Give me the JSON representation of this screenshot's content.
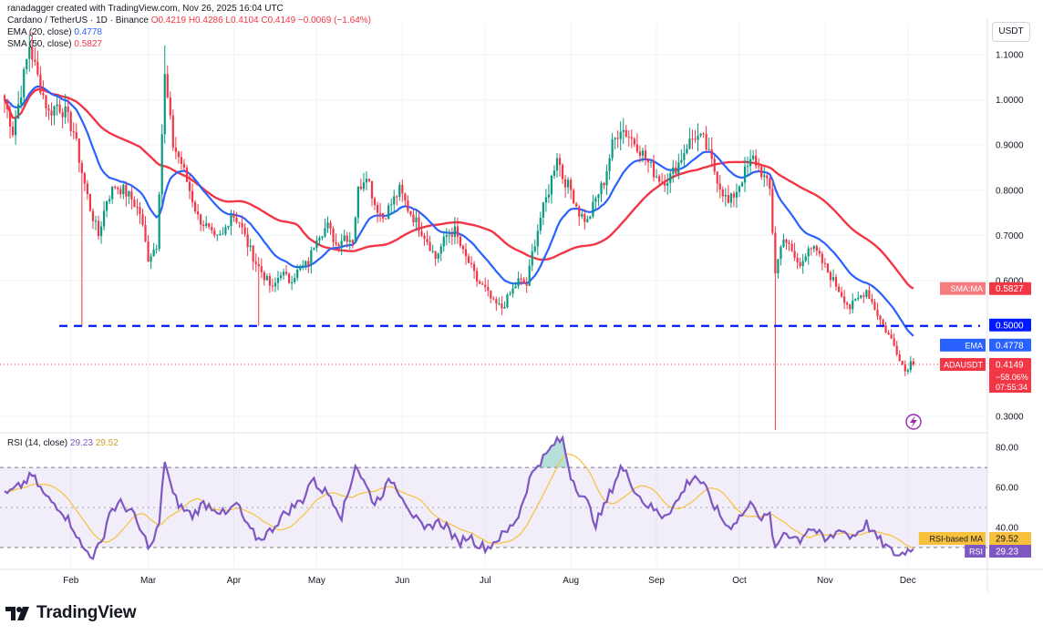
{
  "header": {
    "author_line": "ranadagger created with TradingView.com, Nov 26, 2025 16:04 UTC",
    "symbol": "Cardano / TetherUS · 1D · Binance",
    "ohlc": "O0.4219 H0.4286 L0.4104 C0.4149 −0.0069 (−1.64%)",
    "ema_label": "EMA (20, close)",
    "ema_value": "0.4778",
    "sma_label": "SMA (50, close)",
    "sma_value": "0.5827"
  },
  "currency_badge": "USDT",
  "brand": {
    "name": "TradingView"
  },
  "colors": {
    "up": "#089981",
    "down": "#f23645",
    "ema": "#2962ff",
    "sma": "#f23645",
    "support": "#0019ff",
    "rsi": "#7e57c2",
    "rsi_ma": "#f7c13b",
    "grid": "#f0f3fa"
  },
  "chart_data": [
    {
      "type": "candlestick",
      "ylim": [
        0.27,
        1.17
      ],
      "y_ticks": [
        "1.1000",
        "1.0000",
        "0.9000",
        "0.8000",
        "0.7000",
        "0.6000",
        "0.3000"
      ],
      "x_ticks": [
        "Feb",
        "Mar",
        "Apr",
        "May",
        "Jun",
        "Jul",
        "Aug",
        "Sep",
        "Oct",
        "Nov",
        "Dec"
      ],
      "support_level": {
        "value": 0.5,
        "label": "0.5000"
      },
      "price_tag": {
        "label": "ADAUSDT",
        "value": "0.4149",
        "change": "−58.06%",
        "countdown": "07:55:34"
      },
      "ema_tag": {
        "label": "EMA",
        "value": "0.4778"
      },
      "sma_tag": {
        "label": "SMA:MA",
        "value": "0.5827"
      },
      "close_anchors": [
        [
          0,
          1.0
        ],
        [
          3,
          0.93
        ],
        [
          6,
          1.02
        ],
        [
          9,
          1.12
        ],
        [
          12,
          1.05
        ],
        [
          16,
          0.97
        ],
        [
          19,
          0.99
        ],
        [
          22,
          0.97
        ],
        [
          25,
          0.93
        ],
        [
          28,
          0.84
        ],
        [
          31,
          0.76
        ],
        [
          34,
          0.7
        ],
        [
          37,
          0.78
        ],
        [
          40,
          0.81
        ],
        [
          43,
          0.8
        ],
        [
          46,
          0.78
        ],
        [
          49,
          0.75
        ],
        [
          52,
          0.65
        ],
        [
          55,
          0.68
        ],
        [
          58,
          1.05
        ],
        [
          61,
          0.9
        ],
        [
          64,
          0.86
        ],
        [
          67,
          0.8
        ],
        [
          70,
          0.74
        ],
        [
          73,
          0.72
        ],
        [
          76,
          0.69
        ],
        [
          79,
          0.7
        ],
        [
          82,
          0.75
        ],
        [
          85,
          0.73
        ],
        [
          88,
          0.68
        ],
        [
          91,
          0.64
        ],
        [
          94,
          0.61
        ],
        [
          97,
          0.58
        ],
        [
          100,
          0.62
        ],
        [
          103,
          0.6
        ],
        [
          106,
          0.62
        ],
        [
          110,
          0.64
        ],
        [
          113,
          0.7
        ],
        [
          117,
          0.72
        ],
        [
          120,
          0.68
        ],
        [
          123,
          0.7
        ],
        [
          126,
          0.69
        ],
        [
          128,
          0.8
        ],
        [
          131,
          0.84
        ],
        [
          134,
          0.77
        ],
        [
          137,
          0.74
        ],
        [
          140,
          0.77
        ],
        [
          143,
          0.8
        ],
        [
          146,
          0.76
        ],
        [
          149,
          0.73
        ],
        [
          153,
          0.69
        ],
        [
          156,
          0.65
        ],
        [
          160,
          0.7
        ],
        [
          163,
          0.71
        ],
        [
          166,
          0.66
        ],
        [
          168,
          0.64
        ],
        [
          171,
          0.6
        ],
        [
          174,
          0.58
        ],
        [
          177,
          0.55
        ],
        [
          180,
          0.54
        ],
        [
          183,
          0.57
        ],
        [
          186,
          0.6
        ],
        [
          189,
          0.59
        ],
        [
          191,
          0.66
        ],
        [
          194,
          0.74
        ],
        [
          197,
          0.8
        ],
        [
          200,
          0.88
        ],
        [
          202,
          0.83
        ],
        [
          205,
          0.8
        ],
        [
          208,
          0.75
        ],
        [
          211,
          0.73
        ],
        [
          214,
          0.78
        ],
        [
          217,
          0.82
        ],
        [
          220,
          0.9
        ],
        [
          223,
          0.94
        ],
        [
          226,
          0.92
        ],
        [
          229,
          0.9
        ],
        [
          232,
          0.87
        ],
        [
          235,
          0.84
        ],
        [
          238,
          0.82
        ],
        [
          241,
          0.83
        ],
        [
          244,
          0.86
        ],
        [
          247,
          0.9
        ],
        [
          250,
          0.92
        ],
        [
          253,
          0.91
        ],
        [
          256,
          0.86
        ],
        [
          259,
          0.81
        ],
        [
          262,
          0.77
        ],
        [
          265,
          0.8
        ],
        [
          268,
          0.84
        ],
        [
          271,
          0.87
        ],
        [
          274,
          0.84
        ],
        [
          277,
          0.8
        ],
        [
          279,
          0.62
        ],
        [
          282,
          0.7
        ],
        [
          285,
          0.66
        ],
        [
          288,
          0.63
        ],
        [
          291,
          0.68
        ],
        [
          294,
          0.66
        ],
        [
          297,
          0.63
        ],
        [
          300,
          0.6
        ],
        [
          303,
          0.57
        ],
        [
          306,
          0.54
        ],
        [
          309,
          0.56
        ],
        [
          312,
          0.58
        ],
        [
          315,
          0.54
        ],
        [
          318,
          0.5
        ],
        [
          321,
          0.47
        ],
        [
          324,
          0.43
        ],
        [
          326,
          0.4
        ],
        [
          328,
          0.42
        ],
        [
          329,
          0.4149
        ]
      ],
      "spikes": [
        {
          "day": 28,
          "low": 0.5
        },
        {
          "day": 58,
          "high": 1.12
        },
        {
          "day": 279,
          "low": 0.27
        },
        {
          "day": 92,
          "low": 0.5
        }
      ]
    },
    {
      "type": "line",
      "title": "RSI (14, close)",
      "value": "29.23",
      "ma_value": "29.52",
      "ylim": [
        20,
        86
      ],
      "y_ticks": [
        "80.00",
        "60.00",
        "40.00"
      ],
      "bands": {
        "upper": 70,
        "middle": 50,
        "lower": 30
      },
      "rsi_tag": {
        "label": "RSI",
        "value": "29.23"
      },
      "rsi_ma_tag": {
        "label": "RSI-based MA",
        "value": "29.52"
      },
      "rsi_anchors": [
        [
          0,
          56
        ],
        [
          5,
          60
        ],
        [
          10,
          66
        ],
        [
          15,
          55
        ],
        [
          20,
          50
        ],
        [
          25,
          40
        ],
        [
          28,
          30
        ],
        [
          32,
          26
        ],
        [
          35,
          32
        ],
        [
          38,
          48
        ],
        [
          42,
          52
        ],
        [
          46,
          48
        ],
        [
          50,
          36
        ],
        [
          53,
          30
        ],
        [
          56,
          42
        ],
        [
          58,
          74
        ],
        [
          61,
          56
        ],
        [
          64,
          50
        ],
        [
          68,
          46
        ],
        [
          72,
          52
        ],
        [
          76,
          50
        ],
        [
          80,
          46
        ],
        [
          84,
          52
        ],
        [
          88,
          40
        ],
        [
          92,
          34
        ],
        [
          96,
          38
        ],
        [
          100,
          45
        ],
        [
          104,
          50
        ],
        [
          108,
          54
        ],
        [
          111,
          64
        ],
        [
          114,
          60
        ],
        [
          118,
          56
        ],
        [
          122,
          46
        ],
        [
          125,
          60
        ],
        [
          127,
          72
        ],
        [
          130,
          63
        ],
        [
          134,
          52
        ],
        [
          137,
          58
        ],
        [
          140,
          64
        ],
        [
          144,
          56
        ],
        [
          148,
          46
        ],
        [
          152,
          38
        ],
        [
          156,
          43
        ],
        [
          160,
          41
        ],
        [
          164,
          32
        ],
        [
          168,
          36
        ],
        [
          172,
          31
        ],
        [
          175,
          30
        ],
        [
          178,
          34
        ],
        [
          182,
          38
        ],
        [
          186,
          46
        ],
        [
          190,
          64
        ],
        [
          193,
          72
        ],
        [
          196,
          76
        ],
        [
          199,
          82
        ],
        [
          202,
          84
        ],
        [
          205,
          66
        ],
        [
          208,
          58
        ],
        [
          211,
          52
        ],
        [
          214,
          42
        ],
        [
          217,
          50
        ],
        [
          220,
          60
        ],
        [
          223,
          70
        ],
        [
          226,
          65
        ],
        [
          229,
          57
        ],
        [
          232,
          52
        ],
        [
          235,
          49
        ],
        [
          238,
          46
        ],
        [
          241,
          49
        ],
        [
          244,
          54
        ],
        [
          247,
          62
        ],
        [
          250,
          66
        ],
        [
          253,
          61
        ],
        [
          256,
          53
        ],
        [
          259,
          46
        ],
        [
          262,
          40
        ],
        [
          265,
          44
        ],
        [
          268,
          48
        ],
        [
          271,
          53
        ],
        [
          274,
          44
        ],
        [
          277,
          46
        ],
        [
          279,
          28
        ],
        [
          282,
          38
        ],
        [
          285,
          36
        ],
        [
          288,
          34
        ],
        [
          291,
          40
        ],
        [
          294,
          38
        ],
        [
          297,
          33
        ],
        [
          300,
          36
        ],
        [
          303,
          40
        ],
        [
          306,
          35
        ],
        [
          309,
          38
        ],
        [
          312,
          42
        ],
        [
          315,
          36
        ],
        [
          318,
          32
        ],
        [
          321,
          28
        ],
        [
          324,
          26
        ],
        [
          326,
          28
        ],
        [
          328,
          30
        ],
        [
          329,
          29.23
        ]
      ]
    }
  ]
}
